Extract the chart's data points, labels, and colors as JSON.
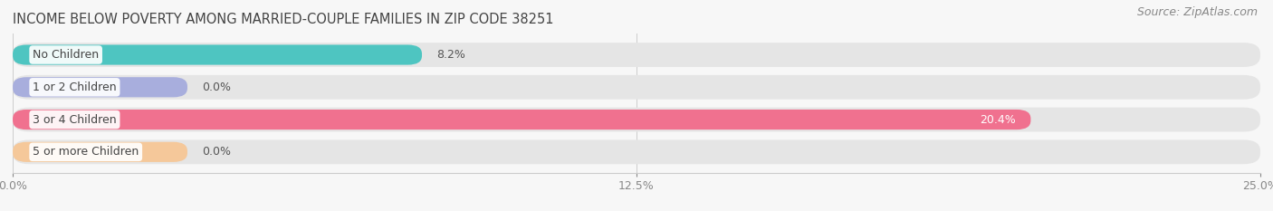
{
  "title": "INCOME BELOW POVERTY AMONG MARRIED-COUPLE FAMILIES IN ZIP CODE 38251",
  "source": "Source: ZipAtlas.com",
  "categories": [
    "No Children",
    "1 or 2 Children",
    "3 or 4 Children",
    "5 or more Children"
  ],
  "values": [
    8.2,
    0.0,
    20.4,
    0.0
  ],
  "value_labels": [
    "8.2%",
    "0.0%",
    "20.4%",
    "0.0%"
  ],
  "bar_colors": [
    "#4ec5c1",
    "#a8aedd",
    "#f0718f",
    "#f5c89a"
  ],
  "xlim": [
    0,
    25.0
  ],
  "xticks": [
    0.0,
    12.5,
    25.0
  ],
  "xticklabels": [
    "0.0%",
    "12.5%",
    "25.0%"
  ],
  "background_color": "#f7f7f7",
  "bar_bg_color": "#e5e5e5",
  "title_fontsize": 10.5,
  "source_fontsize": 9,
  "label_fontsize": 9,
  "value_fontsize": 9,
  "value_inside_color": "#ffffff",
  "value_outside_color": "#555555",
  "inside_threshold": 15.0,
  "stub_value": 3.5
}
